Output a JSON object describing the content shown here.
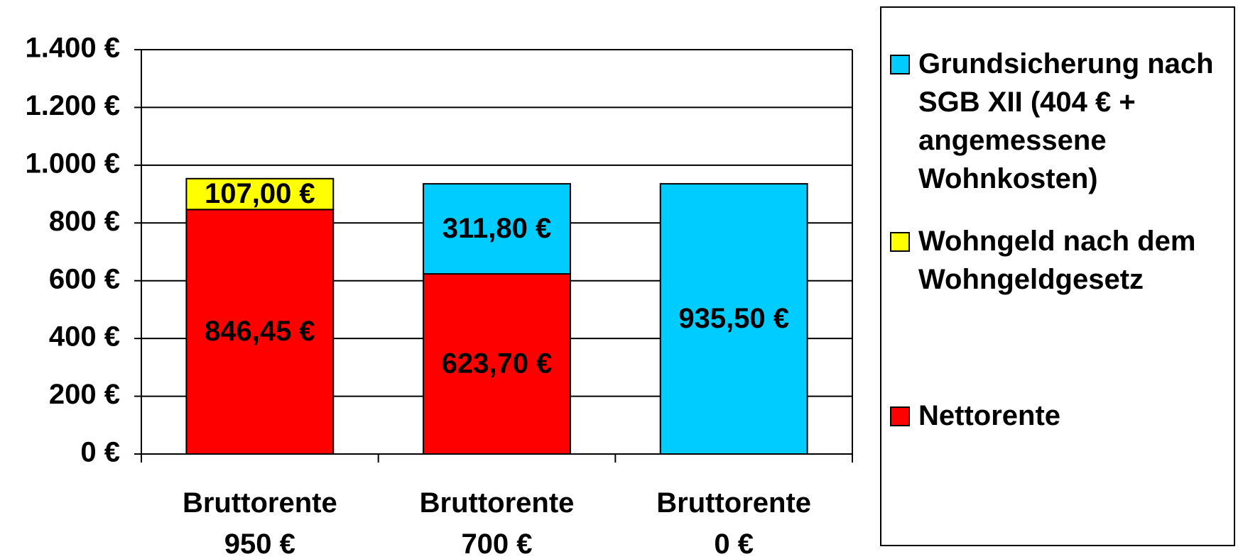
{
  "chart_data": {
    "type": "bar",
    "stacked": true,
    "categories": [
      "Bruttorente 950 €",
      "Bruttorente 700 €",
      "Bruttorente 0 €"
    ],
    "series": [
      {
        "name": "Nettorente",
        "color": "#ff0000",
        "values": [
          846.45,
          623.7,
          null
        ],
        "value_labels": [
          "846,45 €",
          "623,70 €",
          null
        ]
      },
      {
        "name": "Wohngeld nach dem Wohngeldgesetz",
        "color": "#ffff00",
        "values": [
          107.0,
          null,
          null
        ],
        "value_labels": [
          "107,00 €",
          null,
          null
        ]
      },
      {
        "name": "Grundsicherung nach SGB XII (404 € + angemessene Wohnkosten)",
        "color": "#00ccff",
        "values": [
          null,
          311.8,
          935.5
        ],
        "value_labels": [
          null,
          "311,80 €",
          "935,50 €"
        ]
      }
    ],
    "ylim": [
      0,
      1400
    ],
    "yticks": [
      {
        "value": 0,
        "label": "0 €"
      },
      {
        "value": 200,
        "label": "200 €"
      },
      {
        "value": 400,
        "label": "400 €"
      },
      {
        "value": 600,
        "label": "600 €"
      },
      {
        "value": 800,
        "label": "800 €"
      },
      {
        "value": 1000,
        "label": "1.000 €"
      },
      {
        "value": 1200,
        "label": "1.200 €"
      },
      {
        "value": 1400,
        "label": "1.400 €"
      }
    ],
    "grid": true,
    "legend": "right"
  }
}
